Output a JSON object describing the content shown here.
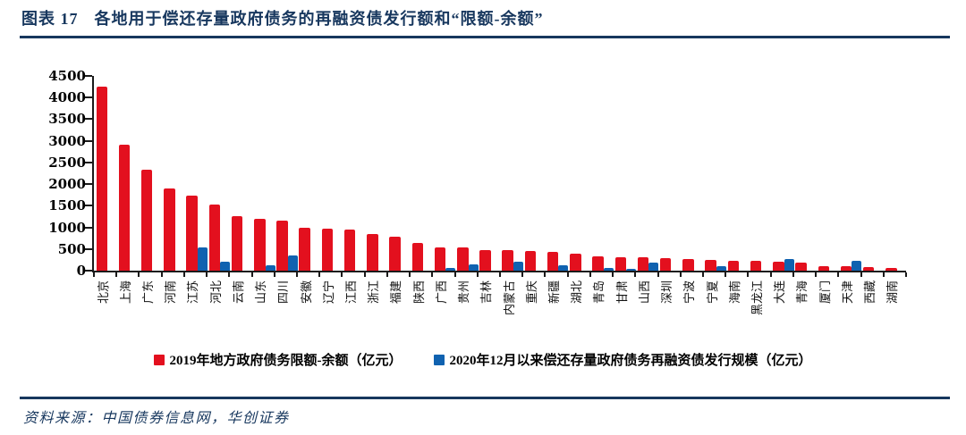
{
  "header": {
    "figure_label": "图表 17",
    "title": "各地用于偿还存量政府债务的再融资债发行额和“限额-余额”"
  },
  "footer": {
    "source_label": "资料来源：",
    "source_text": "中国债券信息网，华创证券"
  },
  "colors": {
    "navy": "#17375e",
    "red": "#e3101e",
    "blue": "#1062b0",
    "axis": "#1a1a1a"
  },
  "chart_data": {
    "type": "bar",
    "title": "",
    "xlabel": "",
    "ylabel": "",
    "ylim": [
      0,
      4500
    ],
    "ytick_step": 500,
    "yticks": [
      0,
      500,
      1000,
      1500,
      2000,
      2500,
      3000,
      3500,
      4000,
      4500
    ],
    "grid": false,
    "legend_position": "bottom",
    "categories": [
      "北京",
      "上海",
      "广东",
      "河南",
      "江苏",
      "河北",
      "云南",
      "山东",
      "四川",
      "安徽",
      "辽宁",
      "江西",
      "浙江",
      "福建",
      "陕西",
      "广西",
      "贵州",
      "吉林",
      "内蒙古",
      "重庆",
      "新疆",
      "湖北",
      "青岛",
      "甘肃",
      "山西",
      "深圳",
      "宁波",
      "宁夏",
      "海南",
      "黑龙江",
      "大连",
      "青海",
      "厦门",
      "天津",
      "西藏",
      "湖南"
    ],
    "series": [
      {
        "name": "2019年地方政府债务限额-余额（亿元）",
        "color": "#e3101e",
        "values": [
          4250,
          2920,
          2330,
          1900,
          1740,
          1530,
          1260,
          1200,
          1150,
          990,
          970,
          940,
          850,
          780,
          650,
          540,
          530,
          480,
          465,
          455,
          440,
          395,
          330,
          315,
          305,
          295,
          270,
          255,
          230,
          220,
          215,
          195,
          105,
          95,
          85,
          65
        ]
      },
      {
        "name": "2020年12月以来偿还存量政府债务再融资债发行规模（亿元）",
        "color": "#1062b0",
        "values": [
          0,
          0,
          0,
          0,
          530,
          210,
          0,
          120,
          345,
          0,
          0,
          0,
          0,
          0,
          0,
          60,
          150,
          0,
          200,
          0,
          130,
          0,
          60,
          50,
          190,
          0,
          0,
          110,
          0,
          0,
          260,
          0,
          0,
          230,
          0,
          0
        ]
      }
    ]
  }
}
